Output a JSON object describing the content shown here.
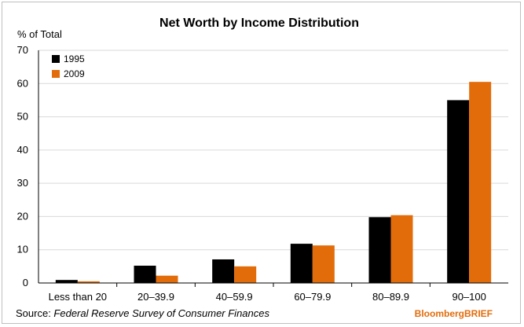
{
  "chart_data": {
    "type": "bar",
    "title": "Net Worth by Income Distribution",
    "ylabel": "% of Total",
    "xlabel": "",
    "ylim": [
      0,
      70
    ],
    "yticks": [
      0,
      10,
      20,
      30,
      40,
      50,
      60,
      70
    ],
    "grid": true,
    "legend_position": "top-left",
    "categories": [
      "Less than 20",
      "20–39.9",
      "40–59.9",
      "60–79.9",
      "80–89.9",
      "90–100"
    ],
    "series": [
      {
        "name": "1995",
        "color": "#000000",
        "values": [
          0.9,
          5.2,
          7.1,
          11.8,
          19.8,
          55.0
        ]
      },
      {
        "name": "2009",
        "color": "#e36c0a",
        "values": [
          0.5,
          2.2,
          5.0,
          11.3,
          20.4,
          60.5
        ]
      }
    ]
  },
  "source": {
    "prefix": "Source: ",
    "text": "Federal Reserve Survey of Consumer Finances"
  },
  "brand": {
    "text": "BloombergBRIEF",
    "color": "#e36c0a"
  }
}
